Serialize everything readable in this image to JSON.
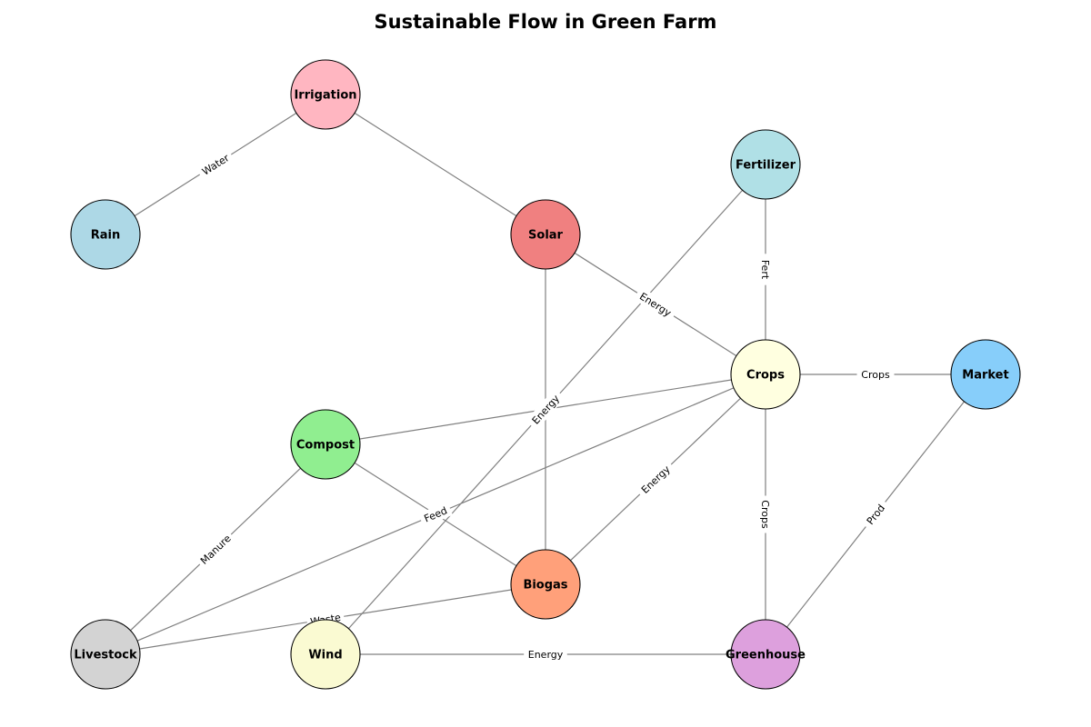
{
  "title": "Sustainable Flow in Green Farm",
  "nodes": [
    {
      "id": "irrigation",
      "label": "Irrigation",
      "color": "#FFB6C1"
    },
    {
      "id": "rain",
      "label": "Rain",
      "color": "#ADD8E6"
    },
    {
      "id": "solar",
      "label": "Solar",
      "color": "#F08080"
    },
    {
      "id": "fertilizer",
      "label": "Fertilizer",
      "color": "#B0E0E6"
    },
    {
      "id": "crops",
      "label": "Crops",
      "color": "#FFFFE0"
    },
    {
      "id": "market",
      "label": "Market",
      "color": "#87CEFA"
    },
    {
      "id": "compost",
      "label": "Compost",
      "color": "#90EE90"
    },
    {
      "id": "biogas",
      "label": "Biogas",
      "color": "#FFA07A"
    },
    {
      "id": "livestock",
      "label": "Livestock",
      "color": "#D3D3D3"
    },
    {
      "id": "wind",
      "label": "Wind",
      "color": "#FAFAD2"
    },
    {
      "id": "greenhouse",
      "label": "Greenhouse",
      "color": "#DDA0DD"
    }
  ],
  "edges": [
    {
      "from": "rain",
      "to": "irrigation",
      "label": "Water"
    },
    {
      "from": "irrigation",
      "to": "solar",
      "label": ""
    },
    {
      "from": "solar",
      "to": "crops",
      "label": "Energy"
    },
    {
      "from": "fertilizer",
      "to": "crops",
      "label": "Fert"
    },
    {
      "from": "crops",
      "to": "market",
      "label": "Crops"
    },
    {
      "from": "solar",
      "to": "biogas",
      "label": ""
    },
    {
      "from": "compost",
      "to": "crops",
      "label": ""
    },
    {
      "from": "fertilizer",
      "to": "wind",
      "label": "Energy"
    },
    {
      "from": "compost",
      "to": "biogas",
      "label": ""
    },
    {
      "from": "livestock",
      "to": "compost",
      "label": "Manure"
    },
    {
      "from": "livestock",
      "to": "crops",
      "label": "Feed"
    },
    {
      "from": "biogas",
      "to": "crops",
      "label": "Energy"
    },
    {
      "from": "crops",
      "to": "greenhouse",
      "label": "Crops"
    },
    {
      "from": "greenhouse",
      "to": "market",
      "label": "Prod"
    },
    {
      "from": "livestock",
      "to": "biogas",
      "label": "Waste"
    },
    {
      "from": "wind",
      "to": "greenhouse",
      "label": "Energy"
    }
  ]
}
